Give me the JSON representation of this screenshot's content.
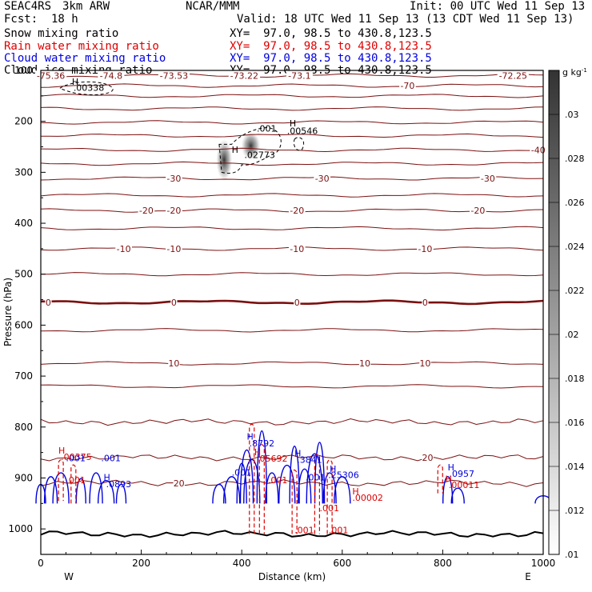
{
  "header": {
    "model": "SEAC4RS",
    "resolution": "3km ARW",
    "org": "NCAR/MMM",
    "init": "Init: 00 UTC Wed 11 Sep 13",
    "fcst_label": "Fcst:",
    "fcst_value": "18 h",
    "valid": "Valid: 18 UTC Wed 11 Sep 13 (13 CDT Wed 11 Sep 13)"
  },
  "fields": [
    {
      "name": "Snow mixing ratio",
      "xy": "XY=  97.0, 98.5 to 430.8,123.5",
      "color": "#000000"
    },
    {
      "name": "Rain water mixing ratio",
      "xy": "XY=  97.0, 98.5 to 430.8,123.5",
      "color": "#dd0000"
    },
    {
      "name": "Cloud water mixing ratio",
      "xy": "XY=  97.0, 98.5 to 430.8,123.5",
      "color": "#0000dd"
    },
    {
      "name": "Cloud ice mixing ratio",
      "xy": "XY=  97.0, 98.5 to 430.8,123.5",
      "color": "#000000"
    }
  ],
  "colors": {
    "temperature": "#7b1010",
    "rain": "#dd0000",
    "cloud": "#0000dd",
    "ice": "#000000"
  },
  "chart_data": {
    "type": "contour",
    "xlabel": "Distance (km)",
    "ylabel": "Pressure (hPa)",
    "xlim": [
      0,
      1000
    ],
    "ylim": [
      1050,
      100
    ],
    "xticks": [
      0,
      200,
      400,
      600,
      800,
      1000
    ],
    "yticks": [
      100,
      200,
      300,
      400,
      500,
      600,
      700,
      800,
      900,
      1000
    ],
    "x_end_labels": {
      "left": "W",
      "right": "E"
    },
    "colorbar": {
      "unit": "g kg",
      "unit_exp": "-1",
      "tick_labels": [
        ".01",
        ".012",
        ".014",
        ".016",
        ".018",
        ".02",
        ".022",
        ".024",
        ".026",
        ".028",
        ".03"
      ],
      "range": [
        0.01,
        0.032
      ]
    },
    "temperature_contours": [
      {
        "pressure": 110,
        "labels": [
          {
            "x": 20,
            "text": "-75.36"
          },
          {
            "x": 140,
            "text": "-74.8"
          },
          {
            "x": 265,
            "text": "-73.53"
          },
          {
            "x": 405,
            "text": "-73.22"
          },
          {
            "x": 515,
            "text": "-73.1"
          },
          {
            "x": 940,
            "text": "-72.25"
          }
        ]
      },
      {
        "pressure": 130,
        "labels": [
          {
            "x": 730,
            "text": "-70"
          }
        ]
      },
      {
        "pressure": 150,
        "labels": []
      },
      {
        "pressure": 175,
        "labels": []
      },
      {
        "pressure": 202,
        "labels": []
      },
      {
        "pressure": 228,
        "labels": []
      },
      {
        "pressure": 256,
        "labels": [
          {
            "x": 990,
            "text": "-40"
          }
        ]
      },
      {
        "pressure": 283,
        "labels": []
      },
      {
        "pressure": 312,
        "labels": [
          {
            "x": 265,
            "text": "-30"
          },
          {
            "x": 560,
            "text": "-30"
          },
          {
            "x": 890,
            "text": "-30"
          }
        ]
      },
      {
        "pressure": 345,
        "labels": []
      },
      {
        "pressure": 375,
        "labels": [
          {
            "x": 210,
            "text": "-20"
          },
          {
            "x": 265,
            "text": "-20"
          },
          {
            "x": 510,
            "text": "-20"
          },
          {
            "x": 870,
            "text": "-20"
          }
        ]
      },
      {
        "pressure": 410,
        "labels": []
      },
      {
        "pressure": 450,
        "labels": [
          {
            "x": 165,
            "text": "-10"
          },
          {
            "x": 265,
            "text": "-10"
          },
          {
            "x": 510,
            "text": "-10"
          },
          {
            "x": 765,
            "text": "-10"
          }
        ]
      },
      {
        "pressure": 500,
        "labels": []
      },
      {
        "pressure": 555,
        "labels": [
          {
            "x": 15,
            "text": "0"
          },
          {
            "x": 265,
            "text": "0"
          },
          {
            "x": 510,
            "text": "0"
          },
          {
            "x": 765,
            "text": "0"
          }
        ]
      },
      {
        "pressure": 610,
        "labels": []
      },
      {
        "pressure": 675,
        "labels": [
          {
            "x": 265,
            "text": "10"
          },
          {
            "x": 645,
            "text": "10"
          },
          {
            "x": 765,
            "text": "10"
          }
        ]
      },
      {
        "pressure": 720,
        "labels": []
      },
      {
        "pressure": 790,
        "labels": []
      },
      {
        "pressure": 860,
        "labels": [
          {
            "x": 770,
            "text": "20"
          }
        ]
      },
      {
        "pressure": 910,
        "labels": [
          {
            "x": 275,
            "text": "20"
          }
        ]
      },
      {
        "pressure": 1010,
        "labels": []
      }
    ],
    "max_labels": [
      {
        "x": 65,
        "p": 140,
        "text": ".00338",
        "field": "ice"
      },
      {
        "x": 490,
        "p": 225,
        "text": ".00546",
        "field": "ice"
      },
      {
        "x": 430,
        "p": 220,
        "text": ".001",
        "field": "ice"
      },
      {
        "x": 405,
        "p": 272,
        "text": ".02773",
        "field": "ice"
      },
      {
        "x": 40,
        "p": 865,
        "text": ".00375",
        "field": "rain"
      },
      {
        "x": 50,
        "p": 910,
        "text": ".001",
        "field": "rain"
      },
      {
        "x": 50,
        "p": 867,
        "text": ".001",
        "field": "cloud"
      },
      {
        "x": 120,
        "p": 867,
        "text": ".001",
        "field": "cloud"
      },
      {
        "x": 130,
        "p": 918,
        "text": ".0893",
        "field": "cloud"
      },
      {
        "x": 380,
        "p": 895,
        "text": ".001",
        "field": "cloud"
      },
      {
        "x": 415,
        "p": 838,
        "text": ".8792",
        "field": "cloud"
      },
      {
        "x": 430,
        "p": 868,
        "text": ".05692",
        "field": "rain"
      },
      {
        "x": 452,
        "p": 910,
        "text": ".001",
        "field": "rain"
      },
      {
        "x": 510,
        "p": 870,
        "text": ".3841",
        "field": "cloud"
      },
      {
        "x": 527,
        "p": 905,
        "text": ".001",
        "field": "cloud"
      },
      {
        "x": 572,
        "p": 900,
        "text": ".25306",
        "field": "cloud"
      },
      {
        "x": 555,
        "p": 965,
        "text": ".001",
        "field": "rain"
      },
      {
        "x": 620,
        "p": 945,
        "text": ".00002",
        "field": "rain"
      },
      {
        "x": 505,
        "p": 1008,
        "text": ".001",
        "field": "rain"
      },
      {
        "x": 573,
        "p": 1008,
        "text": ".001",
        "field": "rain"
      },
      {
        "x": 813,
        "p": 898,
        "text": ".0957",
        "field": "cloud"
      },
      {
        "x": 812,
        "p": 920,
        "text": ".00011",
        "field": "rain"
      }
    ]
  }
}
